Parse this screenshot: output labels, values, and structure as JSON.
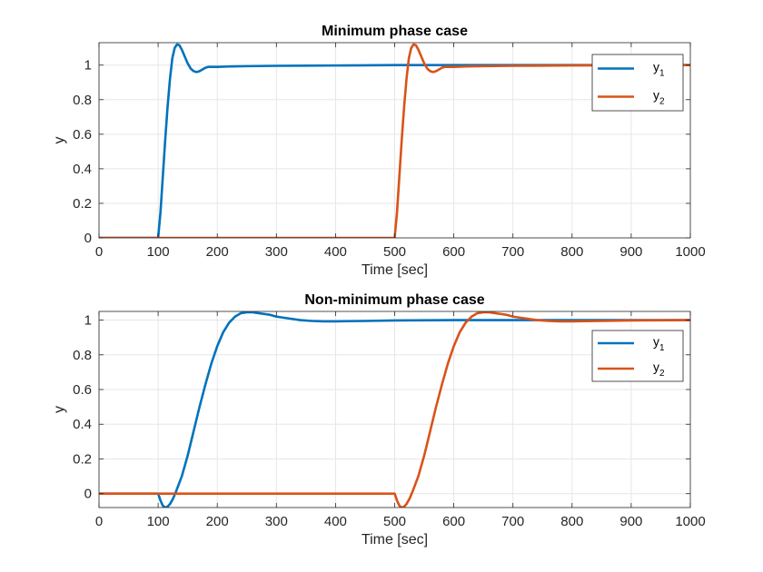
{
  "chart_data": [
    {
      "type": "line",
      "title": "Minimum phase case",
      "xlabel": "Time [sec]",
      "ylabel": "y",
      "xlim": [
        0,
        1000
      ],
      "ylim": [
        0,
        1.13
      ],
      "xticks": [
        0,
        100,
        200,
        300,
        400,
        500,
        600,
        700,
        800,
        900,
        1000
      ],
      "yticks": [
        0,
        0.2,
        0.4,
        0.6,
        0.8,
        1
      ],
      "grid": true,
      "legend": "top-right",
      "series": [
        {
          "name": "y",
          "subscript": "1",
          "color": "#0072BD",
          "x": [
            0,
            100,
            104,
            108,
            112,
            116,
            120,
            124,
            128,
            132,
            136,
            140,
            145,
            150,
            155,
            160,
            165,
            170,
            175,
            180,
            185,
            190,
            200,
            220,
            250,
            300,
            350,
            400,
            450,
            500,
            600,
            700,
            800,
            900,
            1000
          ],
          "y": [
            0,
            0,
            0.15,
            0.36,
            0.57,
            0.76,
            0.92,
            1.04,
            1.1,
            1.12,
            1.115,
            1.09,
            1.05,
            1.01,
            0.98,
            0.965,
            0.96,
            0.965,
            0.975,
            0.985,
            0.99,
            0.99,
            0.99,
            0.992,
            0.994,
            0.996,
            0.997,
            0.998,
            0.999,
            1.0,
            1.0,
            1.0,
            1.0,
            1.0,
            1.0
          ]
        },
        {
          "name": "y",
          "subscript": "2",
          "color": "#D95319",
          "x": [
            0,
            100,
            200,
            300,
            400,
            500,
            504,
            508,
            512,
            516,
            520,
            524,
            528,
            532,
            536,
            540,
            545,
            550,
            555,
            560,
            565,
            570,
            575,
            580,
            585,
            590,
            600,
            620,
            650,
            700,
            750,
            800,
            850,
            900,
            1000
          ],
          "y": [
            0,
            0,
            0,
            0,
            0,
            0,
            0.15,
            0.36,
            0.57,
            0.76,
            0.92,
            1.04,
            1.1,
            1.12,
            1.115,
            1.09,
            1.05,
            1.01,
            0.98,
            0.965,
            0.96,
            0.965,
            0.975,
            0.985,
            0.99,
            0.99,
            0.99,
            0.992,
            0.994,
            0.996,
            0.997,
            0.998,
            0.999,
            1.0,
            1.0
          ]
        }
      ]
    },
    {
      "type": "line",
      "title": "Non-minimum phase case",
      "xlabel": "Time [sec]",
      "ylabel": "y",
      "xlim": [
        0,
        1000
      ],
      "ylim": [
        -0.08,
        1.05
      ],
      "xticks": [
        0,
        100,
        200,
        300,
        400,
        500,
        600,
        700,
        800,
        900,
        1000
      ],
      "yticks": [
        0,
        0.2,
        0.4,
        0.6,
        0.8,
        1
      ],
      "grid": true,
      "legend": "top-right",
      "series": [
        {
          "name": "y",
          "subscript": "1",
          "color": "#0072BD",
          "x": [
            0,
            100,
            104,
            108,
            112,
            116,
            120,
            125,
            130,
            140,
            150,
            160,
            170,
            180,
            190,
            200,
            210,
            220,
            230,
            240,
            250,
            260,
            270,
            280,
            290,
            300,
            320,
            340,
            360,
            380,
            400,
            450,
            500,
            600,
            700,
            800,
            900,
            1000
          ],
          "y": [
            0,
            0,
            -0.04,
            -0.07,
            -0.08,
            -0.075,
            -0.06,
            -0.03,
            0.01,
            0.1,
            0.22,
            0.36,
            0.5,
            0.63,
            0.75,
            0.85,
            0.93,
            0.985,
            1.02,
            1.04,
            1.045,
            1.045,
            1.04,
            1.035,
            1.03,
            1.02,
            1.01,
            1.0,
            0.995,
            0.993,
            0.993,
            0.995,
            0.998,
            1.0,
            1.0,
            1.0,
            1.0,
            1.0
          ]
        },
        {
          "name": "y",
          "subscript": "2",
          "color": "#D95319",
          "x": [
            0,
            100,
            200,
            300,
            400,
            500,
            504,
            508,
            512,
            516,
            520,
            525,
            530,
            540,
            550,
            560,
            570,
            580,
            590,
            600,
            610,
            620,
            630,
            640,
            650,
            660,
            670,
            680,
            690,
            700,
            720,
            740,
            760,
            780,
            800,
            850,
            900,
            1000
          ],
          "y": [
            0,
            0,
            0,
            0,
            0,
            0,
            -0.04,
            -0.07,
            -0.08,
            -0.075,
            -0.06,
            -0.03,
            0.01,
            0.1,
            0.22,
            0.36,
            0.5,
            0.63,
            0.75,
            0.85,
            0.93,
            0.985,
            1.02,
            1.04,
            1.045,
            1.045,
            1.04,
            1.035,
            1.03,
            1.02,
            1.01,
            1.0,
            0.995,
            0.993,
            0.993,
            0.995,
            0.998,
            1.0
          ]
        }
      ]
    }
  ]
}
